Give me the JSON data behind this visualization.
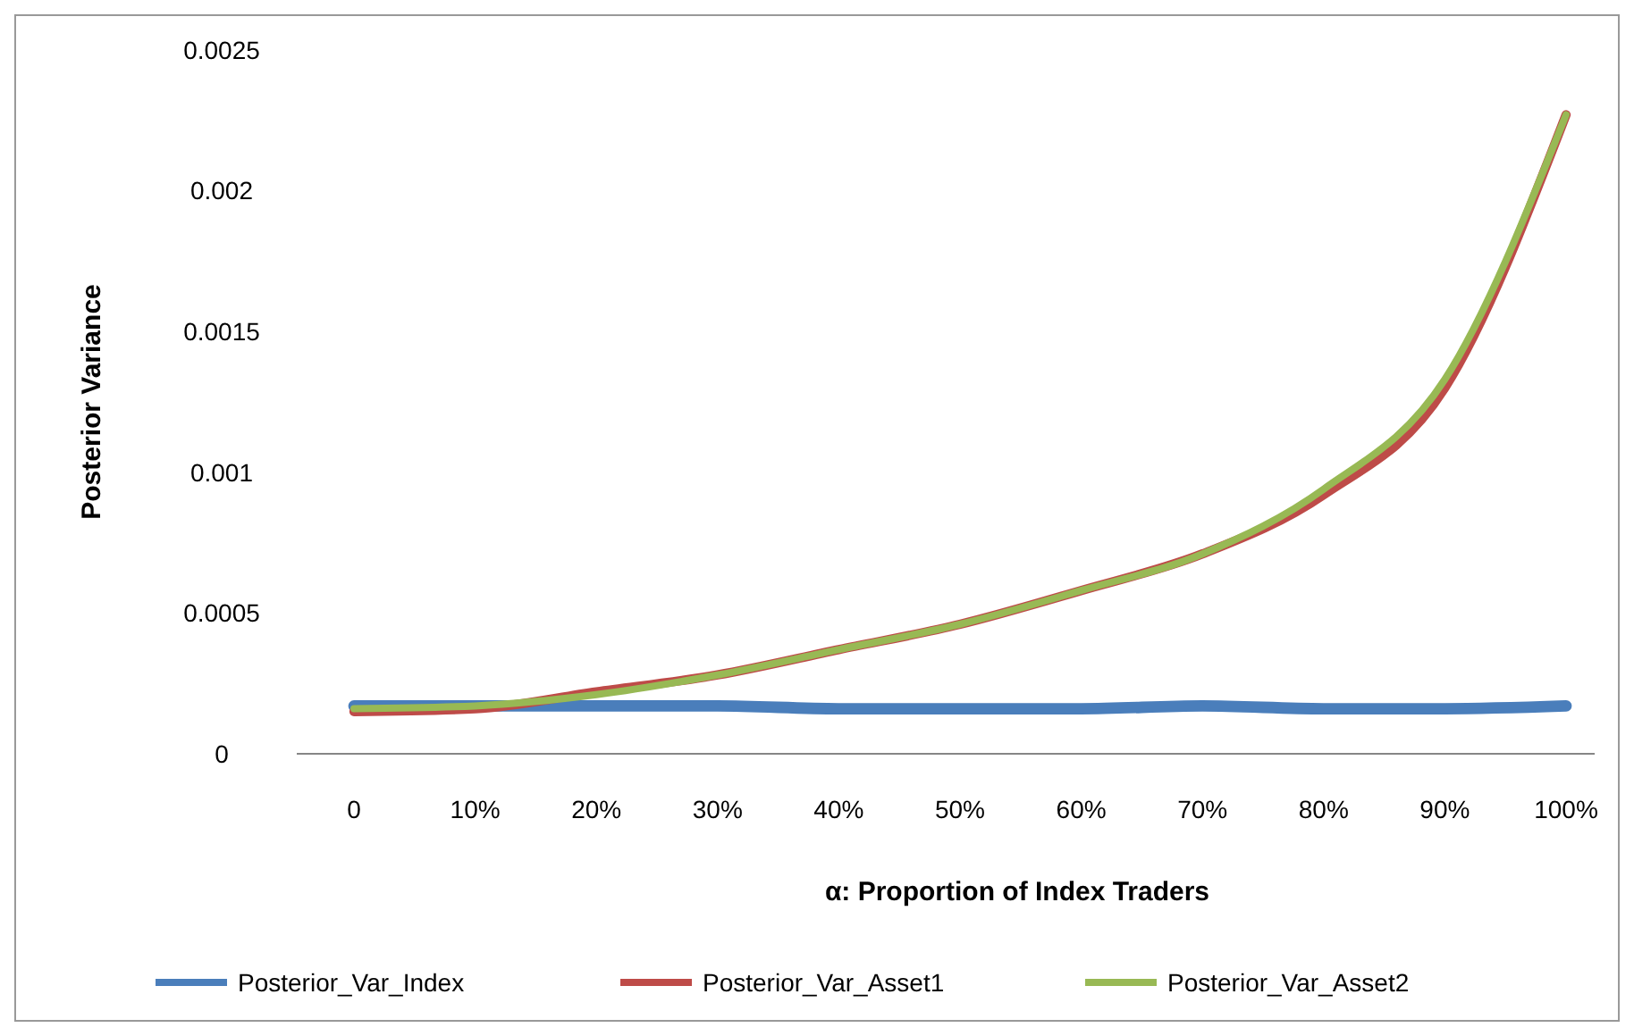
{
  "chart_data": {
    "type": "line",
    "xlabel": "α: Proportion of Index Traders",
    "ylabel": "Posterior Variance",
    "categories": [
      "0",
      "10%",
      "20%",
      "30%",
      "40%",
      "50%",
      "60%",
      "70%",
      "80%",
      "90%",
      "100%"
    ],
    "ylim": [
      0,
      0.0025
    ],
    "yticks": [
      {
        "value": 0,
        "label": "0"
      },
      {
        "value": 0.0005,
        "label": "0.0005"
      },
      {
        "value": 0.001,
        "label": "0.001"
      },
      {
        "value": 0.0015,
        "label": "0.0015"
      },
      {
        "value": 0.002,
        "label": "0.002"
      },
      {
        "value": 0.0025,
        "label": "0.0025"
      }
    ],
    "legend": "bottom",
    "grid": false,
    "marker": "none",
    "series": [
      {
        "name": "Posterior_Var_Index",
        "color": "#4a7ebb",
        "values": [
          0.00017,
          0.00017,
          0.00017,
          0.00017,
          0.00016,
          0.00016,
          0.00016,
          0.00017,
          0.00016,
          0.00016,
          0.00017
        ]
      },
      {
        "name": "Posterior_Var_Asset1",
        "color": "#be4b48",
        "values": [
          0.00015,
          0.00016,
          0.00022,
          0.00028,
          0.00037,
          0.00046,
          0.00058,
          0.00071,
          0.00092,
          0.0013,
          0.00227
        ]
      },
      {
        "name": "Posterior_Var_Asset2",
        "color": "#98b954",
        "values": [
          0.00016,
          0.00017,
          0.00021,
          0.00028,
          0.00037,
          0.00046,
          0.00058,
          0.00071,
          0.00094,
          0.00133,
          0.00227
        ]
      }
    ]
  }
}
